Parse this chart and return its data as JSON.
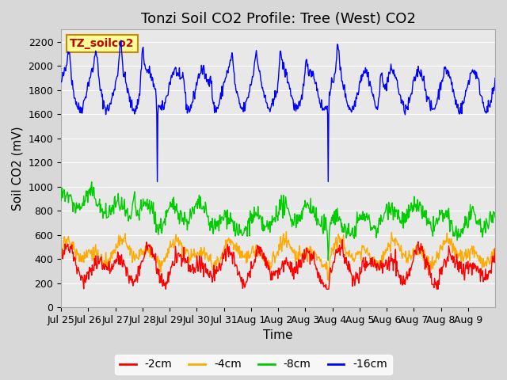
{
  "title": "Tonzi Soil CO2 Profile: Tree (West) CO2",
  "ylabel": "Soil CO2 (mV)",
  "xlabel": "Time",
  "n_days": 16,
  "ylim": [
    0,
    2300
  ],
  "yticks": [
    0,
    200,
    400,
    600,
    800,
    1000,
    1200,
    1400,
    1600,
    1800,
    2000,
    2200
  ],
  "xtick_labels": [
    "Jul 25",
    "Jul 26",
    "Jul 27",
    "Jul 28",
    "Jul 29",
    "Jul 30",
    "Jul 31",
    "Aug 1",
    "Aug 2",
    "Aug 3",
    "Aug 4",
    "Aug 5",
    "Aug 6",
    "Aug 7",
    "Aug 8",
    "Aug 9"
  ],
  "series_colors": {
    "-2cm": "#ff0000",
    "-4cm": "#ffaa00",
    "-8cm": "#00cc00",
    "-16cm": "#0000ff"
  },
  "legend_label_box": "TZ_soilco2",
  "legend_box_facecolor": "#ffff99",
  "legend_box_edgecolor": "#cc8800",
  "title_fontsize": 13,
  "axis_fontsize": 11,
  "tick_fontsize": 9
}
